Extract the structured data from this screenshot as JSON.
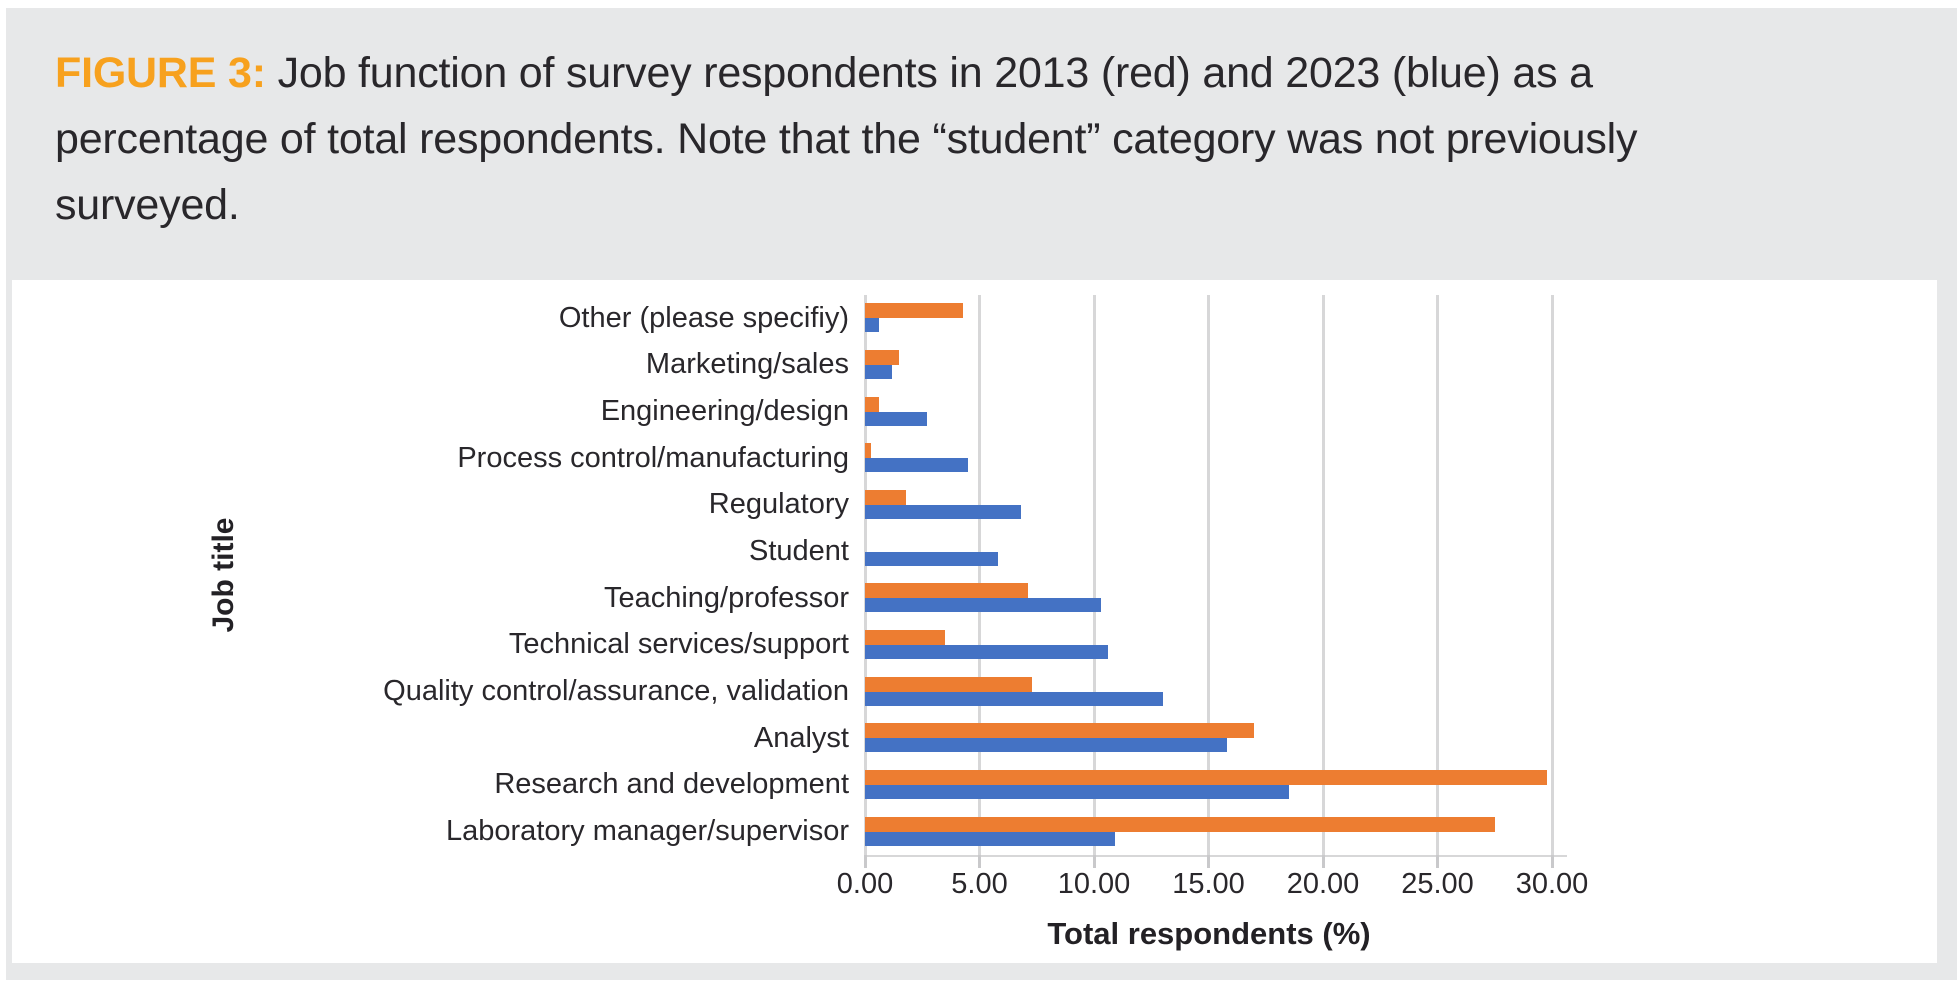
{
  "caption": {
    "label": "FIGURE 3:",
    "line1_rest": " Job function of survey respondents in 2013 (red) and 2023 (blue) as a",
    "line2": "percentage of total respondents. Note that the “student” category was not previously",
    "line3": "surveyed."
  },
  "chart_data": {
    "type": "bar",
    "orientation": "horizontal",
    "title": "",
    "xlabel": "Total respondents (%)",
    "ylabel": "Job title",
    "xlim": [
      0,
      30
    ],
    "xtick_values": [
      0,
      5,
      10,
      15,
      20,
      25,
      30
    ],
    "xtick_labels": [
      "0.00",
      "5.00",
      "10.00",
      "15.00",
      "20.00",
      "25.00",
      "30.00"
    ],
    "grid": true,
    "legend_visible": false,
    "categories_top_to_bottom": [
      "Other (please specifiy)",
      "Marketing/sales",
      "Engineering/design",
      "Process control/manufacturing",
      "Regulatory",
      "Student",
      "Teaching/professor",
      "Technical services/support",
      "Quality control/assurance, validation",
      "Analyst",
      "Research and development",
      "Laboratory manager/supervisor"
    ],
    "series": [
      {
        "name": "2013",
        "color": "#ed7d31",
        "values": [
          4.3,
          1.5,
          0.6,
          0.25,
          1.8,
          0,
          7.1,
          3.5,
          7.3,
          17.0,
          29.8,
          27.5
        ]
      },
      {
        "name": "2023",
        "color": "#4472c4",
        "values": [
          0.6,
          1.2,
          2.7,
          4.5,
          6.8,
          5.8,
          10.3,
          10.6,
          13.0,
          15.8,
          18.5,
          10.9
        ]
      }
    ],
    "colors": {
      "gridline": "#d7d7d8",
      "plot_background": "#ffffff",
      "page_background": "#e7e8e9",
      "figure_label_orange": "#f7a11e",
      "text": "#29272b"
    }
  }
}
